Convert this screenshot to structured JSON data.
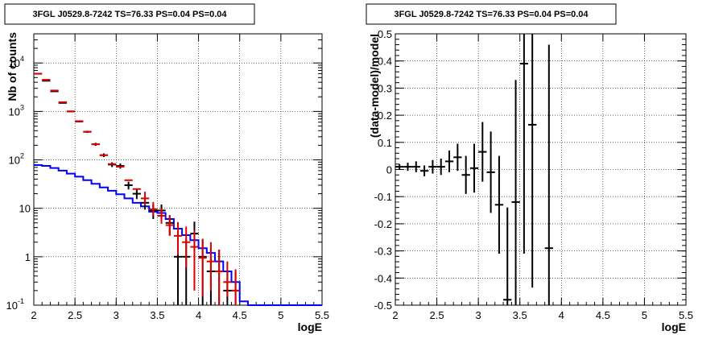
{
  "chart_data": [
    {
      "type": "histogram-scatter",
      "title": "3FGL J0529.8-7242 TS=76.33 PS=0.04 PS=0.04",
      "xlabel": "logE",
      "ylabel": "Nb of counts",
      "xlim": [
        2,
        5.5
      ],
      "ylim": [
        0.1,
        40000
      ],
      "yscale": "log",
      "grid": true,
      "x_ticks": [
        "2",
        "2.5",
        "3",
        "3.5",
        "4",
        "4.5",
        "5",
        "5.5"
      ],
      "y_ticks": [
        {
          "v": 0.1,
          "b": "10",
          "e": "-1"
        },
        {
          "v": 1,
          "b": "1",
          "e": ""
        },
        {
          "v": 10,
          "b": "10",
          "e": ""
        },
        {
          "v": 100,
          "b": "10",
          "e": "2"
        },
        {
          "v": 1000,
          "b": "10",
          "e": "3"
        },
        {
          "v": 10000,
          "b": "10",
          "e": "4"
        }
      ],
      "bin_width": 0.1,
      "series": [
        {
          "color": "#0000ff",
          "kind": "step",
          "x": [
            2.0,
            2.1,
            2.2,
            2.3,
            2.4,
            2.5,
            2.6,
            2.7,
            2.8,
            2.9,
            3.0,
            3.1,
            3.2,
            3.3,
            3.4,
            3.5,
            3.6,
            3.7,
            3.8,
            3.9,
            4.0,
            4.1,
            4.2,
            4.3,
            4.4,
            4.5,
            4.6,
            4.7,
            4.8,
            4.9,
            5.0,
            5.1,
            5.2,
            5.3,
            5.4
          ],
          "values": [
            78,
            75,
            68,
            60,
            52,
            45,
            38,
            32,
            27,
            23,
            19.5,
            16,
            13,
            11,
            8.5,
            8,
            6,
            3.8,
            2.8,
            2.2,
            1.5,
            1.2,
            0.8,
            0.5,
            0.3,
            0.12,
            0.1,
            0.1,
            0.1,
            0.1,
            0.1,
            0.1,
            0.1,
            0.1,
            0.1
          ]
        },
        {
          "color": "#000000",
          "kind": "points",
          "x": [
            2.05,
            2.15,
            2.25,
            2.35,
            2.45,
            2.55,
            2.65,
            2.75,
            2.85,
            2.95,
            3.05,
            3.15,
            3.25,
            3.35,
            3.45,
            3.55,
            3.65,
            3.75,
            3.85,
            3.95,
            4.05,
            4.15,
            4.25,
            4.35,
            4.45
          ],
          "values": [
            6000,
            4300,
            2600,
            1500,
            1000,
            620,
            380,
            210,
            125,
            80,
            75,
            30,
            20,
            13,
            9,
            9,
            5,
            1,
            1,
            3,
            1,
            0.5,
            0.5,
            0.2,
            0.2
          ],
          "err_low": [
            80,
            66,
            51,
            39,
            32,
            25,
            19,
            15,
            11,
            9,
            9,
            5.5,
            4.5,
            3.6,
            3,
            3,
            2.2,
            0.9,
            0.9,
            1.7,
            0.9,
            0.4,
            0.4,
            0.12,
            0.12
          ],
          "err_high": [
            80,
            66,
            51,
            39,
            32,
            25,
            19,
            15,
            11,
            9,
            9,
            5.5,
            4.5,
            3.6,
            3,
            3,
            2.2,
            1.3,
            1.3,
            2.3,
            1.3,
            0.9,
            0.9,
            0.3,
            0.3
          ]
        },
        {
          "color": "#dd0000",
          "kind": "points",
          "x": [
            2.05,
            2.15,
            2.25,
            2.35,
            2.45,
            2.55,
            2.65,
            2.75,
            2.85,
            2.95,
            3.05,
            3.15,
            3.25,
            3.35,
            3.45,
            3.55,
            3.65,
            3.75,
            3.85,
            3.95,
            4.05,
            4.15,
            4.25,
            4.35,
            4.45
          ],
          "values": [
            6000,
            4500,
            2700,
            1550,
            1000,
            630,
            380,
            210,
            125,
            82,
            72,
            38,
            25,
            16,
            9.5,
            7,
            4.5,
            2.7,
            2,
            1.6,
            0.95,
            0.8,
            0.5,
            0.3,
            0.2
          ],
          "err_low": [
            0,
            0,
            0,
            0,
            0,
            0,
            0,
            0,
            0,
            0,
            0,
            0,
            0,
            4.5,
            2.5,
            2.2,
            1.8,
            1.6,
            1.4,
            1.4,
            0.8,
            0.6,
            0.4,
            0.15,
            0.1
          ],
          "err_high": [
            0,
            0,
            0,
            0,
            0,
            0,
            0,
            0,
            0,
            0,
            0,
            0,
            0,
            6,
            4,
            3,
            2.5,
            2.5,
            2.2,
            1.9,
            1.4,
            1.2,
            0.9,
            0.5,
            0.35
          ]
        }
      ]
    },
    {
      "type": "scatter",
      "title": "3FGL J0529.8-7242 TS=76.33 PS=0.04 PS=0.04",
      "xlabel": "logE",
      "ylabel": "(data-model)/model",
      "xlim": [
        2,
        5.5
      ],
      "ylim": [
        -0.5,
        0.5
      ],
      "grid": true,
      "x_ticks": [
        "2",
        "2.5",
        "3",
        "3.5",
        "4",
        "4.5",
        "5",
        "5.5"
      ],
      "y_ticks": [
        "-0.5",
        "-0.4",
        "-0.3",
        "-0.2",
        "-0.1",
        "0",
        "0.1",
        "0.2",
        "0.3",
        "0.4",
        "0.5"
      ],
      "series": [
        {
          "color": "#000000",
          "kind": "points",
          "x": [
            2.05,
            2.15,
            2.25,
            2.35,
            2.45,
            2.55,
            2.65,
            2.75,
            2.85,
            2.95,
            3.05,
            3.15,
            3.25,
            3.35,
            3.45,
            3.55,
            3.65,
            3.85
          ],
          "values": [
            0.01,
            0.01,
            0.01,
            -0.005,
            0.01,
            0.01,
            0.03,
            0.045,
            -0.02,
            0.005,
            0.065,
            -0.01,
            -0.13,
            -0.48,
            -0.12,
            0.39,
            0.165,
            -0.29
          ],
          "err": [
            0.01,
            0.015,
            0.02,
            0.02,
            0.025,
            0.03,
            0.04,
            0.05,
            0.07,
            0.09,
            0.11,
            0.15,
            0.18,
            0.34,
            0.45,
            0.7,
            0.6,
            0.75
          ]
        }
      ]
    }
  ]
}
